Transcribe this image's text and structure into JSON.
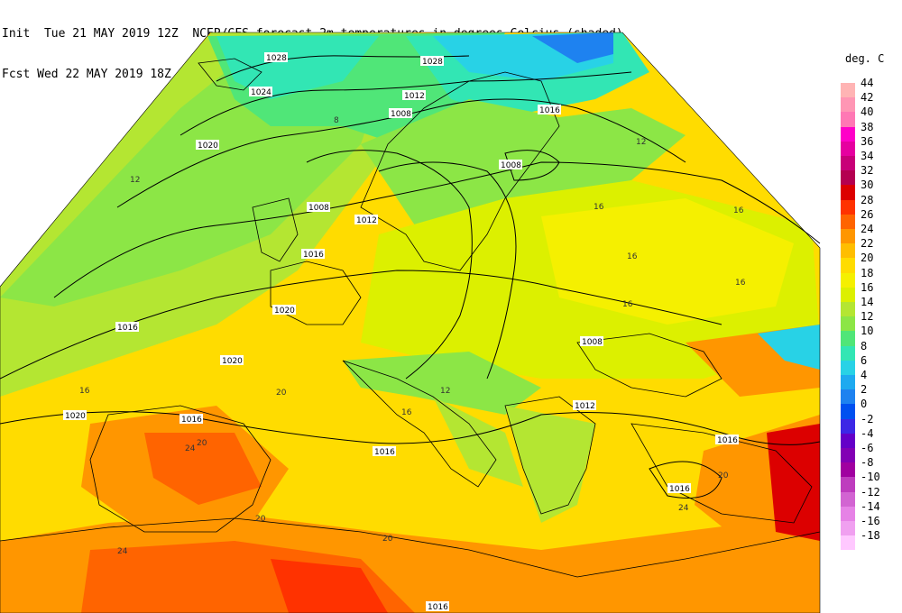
{
  "header": {
    "line1": "Init  Tue 21 MAY 2019 12Z  NCEP/GFS forecast 2m temperatures in degrees Celcius (shaded)",
    "line2": "Fcst Wed 22 MAY 2019 18Z  Mean Sea-Level Pressure (hPa) (black)."
  },
  "legend": {
    "unit": "deg. C",
    "entries": [
      {
        "label": "44",
        "color": "#ffb4b4"
      },
      {
        "label": "42",
        "color": "#ff96b4"
      },
      {
        "label": "40",
        "color": "#ff78b4"
      },
      {
        "label": "38",
        "color": "#ff00c8"
      },
      {
        "label": "36",
        "color": "#e600a0"
      },
      {
        "label": "34",
        "color": "#c80078"
      },
      {
        "label": "32",
        "color": "#b40050"
      },
      {
        "label": "30",
        "color": "#dc0000"
      },
      {
        "label": "28",
        "color": "#ff3200"
      },
      {
        "label": "26",
        "color": "#ff6400"
      },
      {
        "label": "24",
        "color": "#ff9600"
      },
      {
        "label": "22",
        "color": "#ffbe00"
      },
      {
        "label": "20",
        "color": "#ffdc00"
      },
      {
        "label": "18",
        "color": "#f5f000"
      },
      {
        "label": "16",
        "color": "#dcf000"
      },
      {
        "label": "14",
        "color": "#b4e632"
      },
      {
        "label": "12",
        "color": "#8ce646"
      },
      {
        "label": "10",
        "color": "#50e678"
      },
      {
        "label": "8",
        "color": "#32e6b4"
      },
      {
        "label": "6",
        "color": "#28d2e6"
      },
      {
        "label": "4",
        "color": "#1eaaf0"
      },
      {
        "label": "2",
        "color": "#1e82f0"
      },
      {
        "label": "0",
        "color": "#0050f0"
      },
      {
        "label": "-2",
        "color": "#3c28e6"
      },
      {
        "label": "-4",
        "color": "#6400c8"
      },
      {
        "label": "-6",
        "color": "#8200b4"
      },
      {
        "label": "-8",
        "color": "#a000a0"
      },
      {
        "label": "-10",
        "color": "#be3cbe"
      },
      {
        "label": "-12",
        "color": "#d264d2"
      },
      {
        "label": "-14",
        "color": "#e682e6"
      },
      {
        "label": "-16",
        "color": "#f0a0f0"
      },
      {
        "label": "-18",
        "color": "#ffc8ff"
      }
    ]
  },
  "map": {
    "isobar_labels": [
      "1028",
      "1024",
      "1020",
      "1016",
      "1012",
      "1008",
      "1028",
      "1016",
      "1012",
      "1008",
      "1008",
      "1016",
      "1020",
      "1016",
      "1020",
      "1020",
      "1016",
      "1016",
      "1008",
      "1012",
      "1016",
      "1016"
    ],
    "temp_labels": [
      "12",
      "16",
      "20",
      "24",
      "16",
      "12",
      "16",
      "16",
      "16",
      "20",
      "24",
      "20",
      "16",
      "12",
      "8",
      "20",
      "24",
      "20",
      "16"
    ]
  }
}
